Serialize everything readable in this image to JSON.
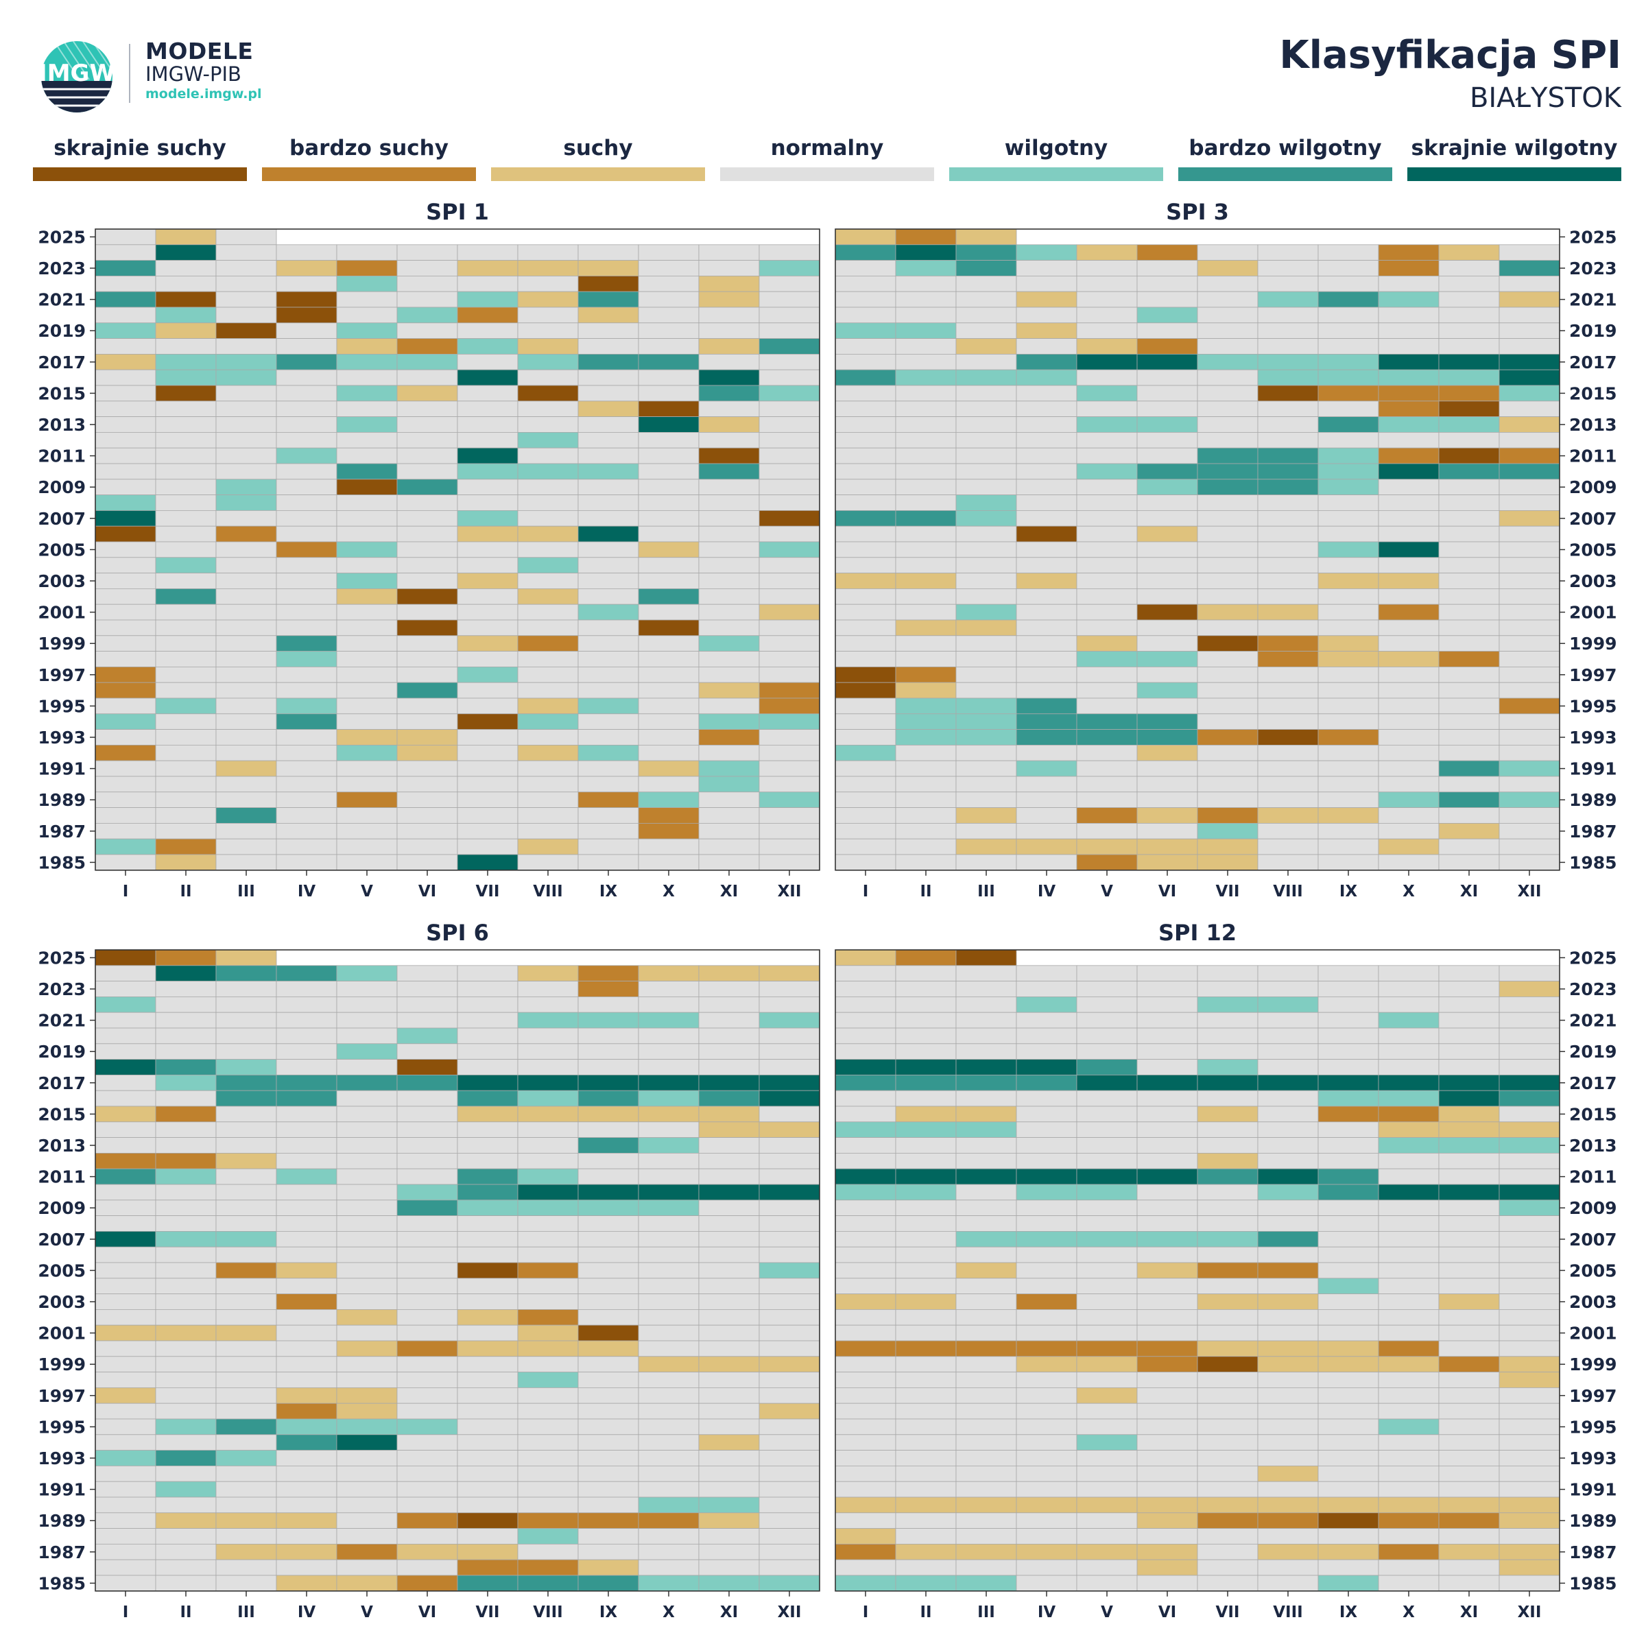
{
  "header": {
    "logo_line1": "MODELE",
    "logo_line2": "IMGW-PIB",
    "logo_line3": "modele.imgw.pl",
    "logo_mark": "IMGW",
    "title": "Klasyfikacja SPI",
    "subtitle": "BIAŁYSTOK"
  },
  "legend": [
    {
      "label": "skrajnie suchy",
      "color": "#8c510a"
    },
    {
      "label": "bardzo suchy",
      "color": "#bf812d"
    },
    {
      "label": "suchy",
      "color": "#dfc27d"
    },
    {
      "label": "normalny",
      "color": "#e0e0e0"
    },
    {
      "label": "wilgotny",
      "color": "#80cdc1"
    },
    {
      "label": "bardzo wilgotny",
      "color": "#35978f"
    },
    {
      "label": "skrajnie wilgotny",
      "color": "#01665e"
    }
  ],
  "chart_data": [
    {
      "type": "heatmap",
      "title": "SPI 1",
      "x_categories": [
        "I",
        "II",
        "III",
        "IV",
        "V",
        "VI",
        "VII",
        "VIII",
        "IX",
        "X",
        "XI",
        "XII"
      ],
      "y_range": [
        1985,
        2025
      ],
      "y_ticks": [
        2025,
        2023,
        2021,
        2019,
        2017,
        2015,
        2013,
        2011,
        2009,
        2007,
        2005,
        2003,
        2001,
        1999,
        1997,
        1995,
        1993,
        1991,
        1989,
        1987,
        1985
      ],
      "class_codes": "0 skrajnie suchy, 1 bardzo suchy, 2 suchy, 3 normalny, 4 wilgotny, 5 bardzo wilgotny, 6 skrajnie wilgotny, - brak danych",
      "rows": {
        "2025": "323---------",
        "2024": "363333333333",
        "2023": "533213222334",
        "2022": "333343330323",
        "2021": "503033425323",
        "2020": "343034132333",
        "2019": "420343333333",
        "2018": "333321423325",
        "2017": "244544345533",
        "2016": "344333633363",
        "2015": "303342303354",
        "2014": "333333332033",
        "2013": "333343333623",
        "2012": "333333343333",
        "2011": "333433633303",
        "2010": "333353444353",
        "2009": "334305333333",
        "2008": "434333333333",
        "2007": "633333433330",
        "2006": "031333226333",
        "2005": "333143333234",
        "2004": "343333343333",
        "2003": "333343233333",
        "2002": "353320323533",
        "2001": "333333334332",
        "2000": "333330333033",
        "1999": "333533213343",
        "1998": "333433333333",
        "1997": "133333433333",
        "1996": "133335333321",
        "1995": "343433324331",
        "1994": "433533043344",
        "1993": "333322333313",
        "1992": "133342324333",
        "1991": "332333333243",
        "1990": "333333333343",
        "1989": "333313331434",
        "1988": "335333333133",
        "1987": "333333333133",
        "1986": "413333323333",
        "1985": "323333633333"
      }
    },
    {
      "type": "heatmap",
      "title": "SPI 3",
      "x_categories": [
        "I",
        "II",
        "III",
        "IV",
        "V",
        "VI",
        "VII",
        "VIII",
        "IX",
        "X",
        "XI",
        "XII"
      ],
      "y_range": [
        1985,
        2025
      ],
      "y_ticks": [
        2025,
        2023,
        2021,
        2019,
        2017,
        2015,
        2013,
        2011,
        2009,
        2007,
        2005,
        2003,
        2001,
        1999,
        1997,
        1995,
        1993,
        1991,
        1989,
        1987,
        1985
      ],
      "class_codes": "0 skrajnie suchy, 1 bardzo suchy, 2 suchy, 3 normalny, 4 wilgotny, 5 bardzo wilgotny, 6 skrajnie wilgotny, - brak danych",
      "rows": {
        "2025": "212---------",
        "2024": "565421333123",
        "2023": "345333233135",
        "2022": "333333333333",
        "2021": "333233345432",
        "2020": "333334333333",
        "2019": "443233333333",
        "2018": "332321333333",
        "2017": "333566444666",
        "2016": "544433344446",
        "2015": "333343301114",
        "2014": "333333333103",
        "2013": "333344335442",
        "2012": "333333333333",
        "2011": "333333554101",
        "2010": "333345554655",
        "2009": "333334554333",
        "2008": "334333333333",
        "2007": "554333333332",
        "2006": "333032333333",
        "2005": "333333334633",
        "2004": "333333333333",
        "2003": "223233332233",
        "2002": "333333333333",
        "2001": "334330223133",
        "2000": "322333333333",
        "1999": "333323012333",
        "1998": "333344312213",
        "1997": "013333333333",
        "1996": "023334333333",
        "1995": "344533333331",
        "1994": "344555333333",
        "1993": "344555101333",
        "1992": "433332333333",
        "1991": "333433333354",
        "1990": "333333333333",
        "1989": "333333333454",
        "1988": "332312122333",
        "1987": "333333433323",
        "1986": "332222233233",
        "1985": "333312233333"
      }
    },
    {
      "type": "heatmap",
      "title": "SPI 6",
      "x_categories": [
        "I",
        "II",
        "III",
        "IV",
        "V",
        "VI",
        "VII",
        "VIII",
        "IX",
        "X",
        "XI",
        "XII"
      ],
      "y_range": [
        1985,
        2025
      ],
      "y_ticks": [
        2025,
        2023,
        2021,
        2019,
        2017,
        2015,
        2013,
        2011,
        2009,
        2007,
        2005,
        2003,
        2001,
        1999,
        1997,
        1995,
        1993,
        1991,
        1989,
        1987,
        1985
      ],
      "class_codes": "0 skrajnie suchy, 1 bardzo suchy, 2 suchy, 3 normalny, 4 wilgotny, 5 bardzo wilgotny, 6 skrajnie wilgotny, - brak danych",
      "rows": {
        "2025": "012---------",
        "2024": "365543321222",
        "2023": "333333331333",
        "2022": "433333333333",
        "2021": "333333344434",
        "2020": "333334333333",
        "2019": "333343333333",
        "2018": "654330333333",
        "2017": "345555666666",
        "2016": "335533545456",
        "2015": "213333222223",
        "2014": "333333333322",
        "2013": "333333335433",
        "2012": "112333333333",
        "2011": "543433543333",
        "2010": "333334566666",
        "2009": "333335444433",
        "2008": "333333333333",
        "2007": "644333333333",
        "2006": "333333333333",
        "2005": "331233013334",
        "2004": "333333333333",
        "2003": "333133333333",
        "2002": "333323213333",
        "2001": "222333320333",
        "2000": "333321222333",
        "1999": "333333333222",
        "1998": "333333343333",
        "1997": "233223333333",
        "1996": "333123333332",
        "1995": "345444333333",
        "1994": "333563333323",
        "1993": "454333333333",
        "1992": "333333333333",
        "1991": "343333333333",
        "1990": "333333333443",
        "1989": "322231011123",
        "1988": "333333343333",
        "1987": "332212233333",
        "1986": "333333112333",
        "1985": "333221555444"
      }
    },
    {
      "type": "heatmap",
      "title": "SPI 12",
      "x_categories": [
        "I",
        "II",
        "III",
        "IV",
        "V",
        "VI",
        "VII",
        "VIII",
        "IX",
        "X",
        "XI",
        "XII"
      ],
      "y_range": [
        1985,
        2025
      ],
      "y_ticks": [
        2025,
        2023,
        2021,
        2019,
        2017,
        2015,
        2013,
        2011,
        2009,
        2007,
        2005,
        2003,
        2001,
        1999,
        1997,
        1995,
        1993,
        1991,
        1989,
        1987,
        1985
      ],
      "class_codes": "0 skrajnie suchy, 1 bardzo suchy, 2 suchy, 3 normalny, 4 wilgotny, 5 bardzo wilgotny, 6 skrajnie wilgotny, - brak danych",
      "rows": {
        "2025": "210---------",
        "2024": "333333333333",
        "2023": "333333333332",
        "2022": "333433443333",
        "2021": "333333333433",
        "2020": "333333333333",
        "2019": "333333333333",
        "2018": "666653433333",
        "2017": "555566666666",
        "2016": "333333334465",
        "2015": "322333231123",
        "2014": "444333333222",
        "2013": "333333333444",
        "2012": "333333233333",
        "2011": "666666565333",
        "2010": "443443345666",
        "2009": "333333333334",
        "2008": "333333333333",
        "2007": "334444453333",
        "2006": "333333333333",
        "2005": "332332113333",
        "2004": "333333334333",
        "2003": "223133223323",
        "2002": "333333333333",
        "2001": "333333333333",
        "2000": "111111222133",
        "1999": "333221022212",
        "1998": "333333333332",
        "1997": "333323333333",
        "1996": "333333333333",
        "1995": "333333333433",
        "1994": "333343333333",
        "1993": "333333333333",
        "1992": "333333323333",
        "1991": "333333333333",
        "1990": "222222222222",
        "1989": "333332110112",
        "1988": "233333333333",
        "1987": "122222322122",
        "1986": "333332333332",
        "1985": "444333334333"
      }
    }
  ]
}
